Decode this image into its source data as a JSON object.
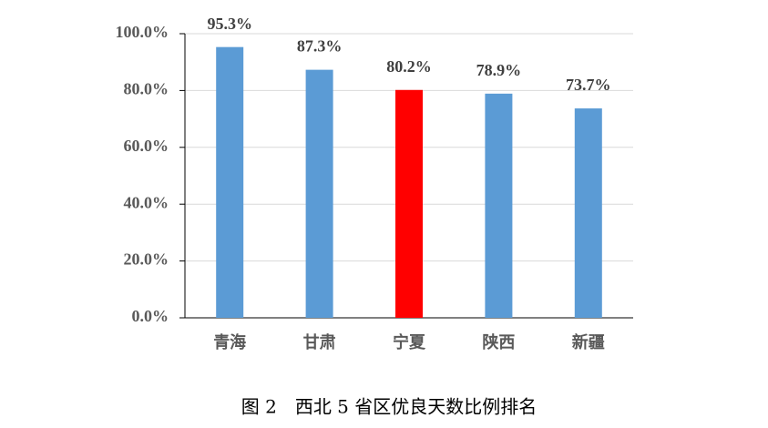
{
  "chart_data": {
    "type": "bar",
    "title": "图 2　西北 5 省区优良天数比例排名",
    "categories": [
      "青海",
      "甘肃",
      "宁夏",
      "陕西",
      "新疆"
    ],
    "values": [
      95.3,
      87.3,
      80.2,
      78.9,
      73.7
    ],
    "value_labels": [
      "95.3%",
      "87.3%",
      "80.2%",
      "78.9%",
      "73.7%"
    ],
    "colors": [
      "#5b9bd5",
      "#5b9bd5",
      "#ff0000",
      "#5b9bd5",
      "#5b9bd5"
    ],
    "ylim": [
      0,
      100
    ],
    "yticks": [
      {
        "value": 0,
        "label": "0.0%"
      },
      {
        "value": 20,
        "label": "20.0%"
      },
      {
        "value": 40,
        "label": "40.0%"
      },
      {
        "value": 60,
        "label": "60.0%"
      },
      {
        "value": 80,
        "label": "80.0%"
      },
      {
        "value": 100,
        "label": "100.0%"
      }
    ],
    "grid": true
  }
}
